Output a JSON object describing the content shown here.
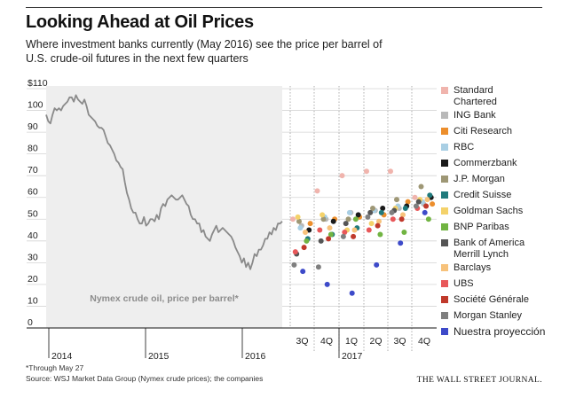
{
  "title": "Looking Ahead at Oil Prices",
  "subtitle": "Where investment banks currently (May 2016) see the price per barrel of U.S. crude-oil futures in the next few quarters",
  "footnote": "*Through May 27",
  "source": "Source: WSJ Market Data Group (Nymex crude prices); the companies",
  "publisher": "THE WALL STREET JOURNAL.",
  "chart_data": {
    "type": "scatter",
    "ylim": [
      0,
      110
    ],
    "yticks": [
      0,
      10,
      20,
      30,
      40,
      50,
      60,
      70,
      80,
      90,
      100,
      110
    ],
    "ytick_labels": [
      "0",
      "10",
      "20",
      "30",
      "40",
      "50",
      "60",
      "70",
      "80",
      "90",
      "100",
      "$110"
    ],
    "history": {
      "label": "Nymex crude oil, price per barrel*",
      "color": "#8a8a8a",
      "start_year": 2014.0,
      "end_year": 2016.41,
      "values": [
        98,
        95,
        94,
        98,
        101,
        100,
        101,
        100,
        102,
        103,
        104,
        106,
        106,
        104,
        107,
        105,
        104,
        103,
        105,
        102,
        98,
        97,
        96,
        95,
        93,
        92,
        92,
        91,
        88,
        85,
        84,
        82,
        80,
        77,
        76,
        74,
        73,
        67,
        62,
        59,
        55,
        53,
        53,
        50,
        48,
        48,
        51,
        47,
        48,
        50,
        50,
        49,
        52,
        50,
        55,
        57,
        56,
        59,
        60,
        61,
        60,
        59,
        59,
        60,
        61,
        59,
        57,
        56,
        52,
        50,
        50,
        48,
        48,
        44,
        45,
        42,
        41,
        40,
        43,
        45,
        47,
        44,
        45,
        46,
        45,
        44,
        43,
        42,
        40,
        37,
        35,
        33,
        30,
        32,
        28,
        30,
        27,
        30,
        34,
        33,
        36,
        36,
        38,
        41,
        41,
        44,
        43,
        46,
        45,
        48,
        48,
        49
      ],
      "x_labels": [
        "2014",
        "2015",
        "2016"
      ]
    },
    "forecast_quarters": [
      "3Q",
      "4Q",
      "1Q",
      "2Q",
      "3Q",
      "4Q"
    ],
    "forecast_year_label": "2017",
    "series": [
      {
        "name": "Standard Chartered",
        "color": "#f0b4ad",
        "values": [
          50,
          63,
          70,
          72,
          72,
          60
        ]
      },
      {
        "name": "ING Bank",
        "color": "#b9b9b9",
        "values": [
          47,
          50,
          53,
          54,
          55,
          57
        ]
      },
      {
        "name": "Citi Research",
        "color": "#ec8e2c",
        "values": [
          48,
          50,
          51,
          52,
          58,
          57
        ]
      },
      {
        "name": "RBC",
        "color": "#a9cfe4",
        "values": [
          46,
          51,
          53,
          54,
          56,
          58
        ]
      },
      {
        "name": "Commerzbank",
        "color": "#1a1a1a",
        "values": [
          45,
          49,
          52,
          55,
          56,
          60
        ]
      },
      {
        "name": "J.P. Morgan",
        "color": "#9e9775",
        "values": [
          49,
          50,
          50,
          55,
          59,
          65
        ]
      },
      {
        "name": "Credit Suisse",
        "color": "#1f7a7c",
        "values": [
          41,
          43,
          46,
          53,
          55,
          61
        ]
      },
      {
        "name": "Goldman Sachs",
        "color": "#f4d26a",
        "values": [
          51,
          52,
          45,
          48,
          55,
          59
        ]
      },
      {
        "name": "BNP Paribas",
        "color": "#71b442",
        "values": [
          40,
          43,
          50,
          43,
          44,
          50
        ]
      },
      {
        "name": "Bank of America Merrill Lynch",
        "color": "#555555",
        "values": [
          34,
          40,
          48,
          53,
          54,
          58
        ]
      },
      {
        "name": "Barclays",
        "color": "#f7c27b",
        "values": [
          44,
          46,
          45,
          49,
          52,
          59
        ]
      },
      {
        "name": "UBS",
        "color": "#e8585a",
        "values": [
          35,
          45,
          44,
          45,
          50,
          55
        ]
      },
      {
        "name": "Société Générale",
        "color": "#c0392b",
        "values": [
          37,
          41,
          42,
          47,
          50,
          56
        ]
      },
      {
        "name": "Morgan Stanley",
        "color": "#7f7f7f",
        "values": [
          29,
          28,
          42,
          51,
          53,
          56
        ]
      },
      {
        "name": "Nuestra proyección",
        "color": "#3d4ac9",
        "values": [
          26,
          20,
          16,
          29,
          39,
          53
        ]
      }
    ]
  }
}
